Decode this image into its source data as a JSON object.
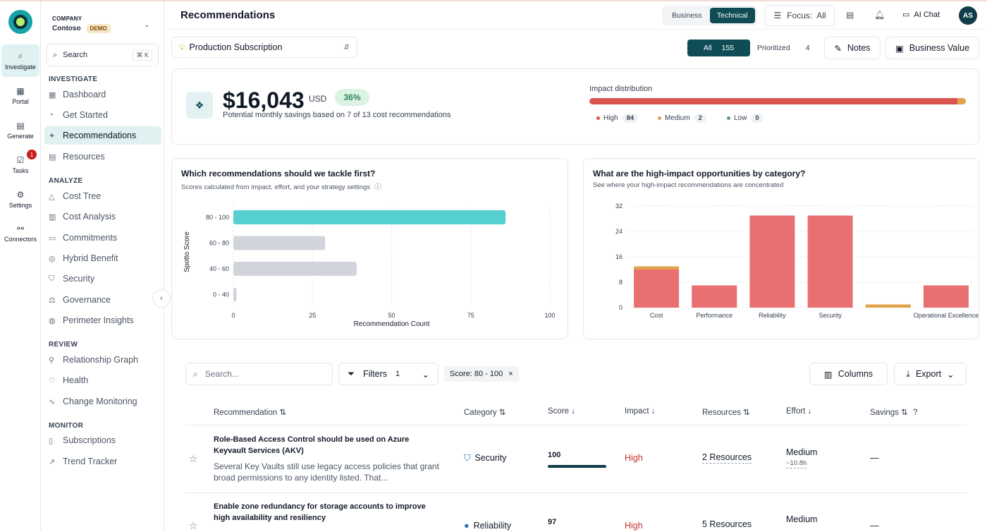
{
  "rail": {
    "items": [
      {
        "label": "Investigate",
        "icon": "search-icon"
      },
      {
        "label": "Portal",
        "icon": "portal-icon"
      },
      {
        "label": "Generate",
        "icon": "document-icon"
      },
      {
        "label": "Tasks",
        "icon": "tasks-icon",
        "badge": "1"
      },
      {
        "label": "Settings",
        "icon": "gear-icon"
      },
      {
        "label": "Connectors",
        "icon": "connectors-icon"
      }
    ]
  },
  "sidebar": {
    "company_label": "COMPANY",
    "company_name": "Contoso",
    "demo_badge": "DEMO",
    "search_label": "Search",
    "search_shortcut": "⌘ K",
    "sections": {
      "investigate": "INVESTIGATE",
      "analyze": "ANALYZE",
      "review": "REVIEW",
      "monitor": "MONITOR"
    },
    "items": {
      "dashboard": "Dashboard",
      "get_started": "Get Started",
      "recommendations": "Recommendations",
      "resources": "Resources",
      "cost_tree": "Cost Tree",
      "cost_analysis": "Cost Analysis",
      "commitments": "Commitments",
      "hybrid_benefit": "Hybrid Benefit",
      "security": "Security",
      "governance": "Governance",
      "perimeter_insights": "Perimeter Insights",
      "relationship_graph": "Relationship Graph",
      "health": "Health",
      "change_monitoring": "Change Monitoring",
      "subscriptions": "Subscriptions",
      "trend_tracker": "Trend Tracker"
    }
  },
  "header": {
    "title": "Recommendations",
    "view_business": "Business",
    "view_technical": "Technical",
    "focus_label": "Focus:",
    "focus_value": "All",
    "ai_chat": "AI Chat",
    "avatar_initials": "AS"
  },
  "toolbar": {
    "subscription": "Production Subscription",
    "tab_all": "All",
    "tab_all_count": "155",
    "tab_prioritized": "Prioritized",
    "tab_prioritized_count": "4",
    "notes": "Notes",
    "business_value": "Business Value"
  },
  "summary": {
    "amount": "$16,043",
    "currency": "USD",
    "percent": "36%",
    "subtitle": "Potential monthly savings based on 7 of 13 cost recommendations",
    "impact_title": "Impact distribution",
    "impact": {
      "high_label": "High",
      "high": 84,
      "medium_label": "Medium",
      "medium": 2,
      "low_label": "Low",
      "low": 0
    }
  },
  "chart_data": [
    {
      "type": "bar",
      "orientation": "horizontal",
      "title": "Which recommendations should we tackle first?",
      "subtitle": "Scores calculated from impact, effort, and your strategy settings",
      "ylabel": "Spotto Score",
      "xlabel": "Recommendation Count",
      "categories": [
        "80 - 100",
        "60 - 80",
        "40 - 60",
        "0 - 40"
      ],
      "values": [
        86,
        29,
        39,
        1
      ],
      "xlim": [
        0,
        100
      ],
      "xticks": [
        0,
        25,
        50,
        75,
        100
      ],
      "colors": [
        "#56cfd0",
        "#d1d5db",
        "#d1d5db",
        "#d1d5db"
      ],
      "grid": true
    },
    {
      "type": "bar",
      "stacked": true,
      "title": "What are the high-impact opportunities by category?",
      "subtitle": "See where your high-impact recommendations are concentrated",
      "categories": [
        "Cost",
        "Performance",
        "Reliability",
        "Security",
        "",
        "Operational Excellence"
      ],
      "series": [
        {
          "values": [
            12,
            7,
            29,
            29,
            0,
            7
          ],
          "color": "#e87070"
        },
        {
          "values": [
            1,
            0,
            0,
            0,
            1,
            0
          ],
          "color": "#e0a24a"
        }
      ],
      "ylim": [
        0,
        32
      ],
      "yticks": [
        0,
        8,
        16,
        24,
        32
      ],
      "grid": true
    }
  ],
  "table": {
    "search_placeholder": "Search...",
    "filters_label": "Filters",
    "filters_count": "1",
    "chip": "Score: 80 - 100",
    "columns_label": "Columns",
    "export_label": "Export",
    "headers": {
      "recommendation": "Recommendation",
      "category": "Category",
      "score": "Score",
      "impact": "Impact",
      "resources": "Resources",
      "effort": "Effort",
      "savings": "Savings"
    },
    "rows": [
      {
        "title": "Role-Based Access Control should be used on Azure Keyvault Services (AKV)",
        "description": "Several Key Vaults still use legacy access policies that grant broad permissions to any identity listed. That...",
        "category": "Security",
        "score": "100",
        "score_fill": 1.0,
        "impact": "High",
        "resources": "2 Resources",
        "effort": "Medium",
        "effort_hours": "~10.8h",
        "savings": "—"
      },
      {
        "title": "Enable zone redundancy for storage accounts to improve high availability and resiliency",
        "category": "Reliability",
        "score": "97",
        "impact": "High",
        "resources": "5 Resources",
        "effort": "Medium",
        "savings": "—"
      }
    ]
  }
}
